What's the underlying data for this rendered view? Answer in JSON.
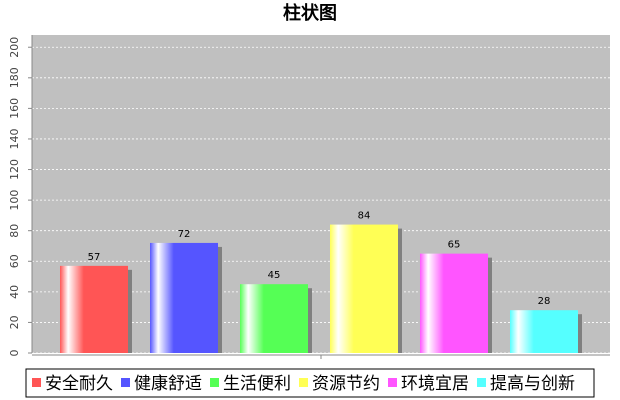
{
  "chart_data": {
    "type": "bar",
    "title": "柱状图",
    "categories": [
      null
    ],
    "series": [
      {
        "name": "安全耐久",
        "color": "#ff5555",
        "values": [
          57
        ]
      },
      {
        "name": "健康舒适",
        "color": "#5555ff",
        "values": [
          72
        ]
      },
      {
        "name": "生活便利",
        "color": "#55ff55",
        "values": [
          45
        ]
      },
      {
        "name": "资源节约",
        "color": "#ffff55",
        "values": [
          84
        ]
      },
      {
        "name": "环境宜居",
        "color": "#ff55ff",
        "values": [
          65
        ]
      },
      {
        "name": "提高与创新",
        "color": "#55ffff",
        "values": [
          28
        ]
      }
    ],
    "ylim": [
      0,
      208
    ],
    "yticks": [
      0,
      20,
      40,
      60,
      80,
      100,
      120,
      140,
      160,
      180,
      200
    ],
    "grid": true,
    "legend": "bottom"
  }
}
